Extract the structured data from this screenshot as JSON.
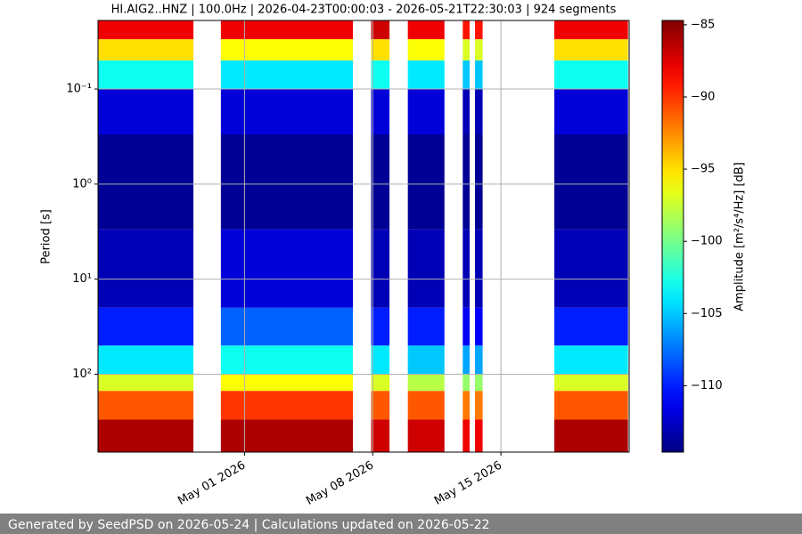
{
  "chart_data": {
    "type": "spectrogram",
    "title": "HI.AIG2..HNZ | 100.0Hz | 2026-04-23T00:00:03 - 2026-05-21T22:30:03 | 924 segments",
    "ylabel": "Period [s]",
    "colorbar_label": "Amplitude [m²/s⁴/Hz] [dB]",
    "xlim": [
      "2026-04-23T00:00:03",
      "2026-05-22T00:00:00"
    ],
    "xticks": [
      {
        "value": "2026-05-01",
        "label": "May 01 2026"
      },
      {
        "value": "2026-05-08",
        "label": "May 08 2026"
      },
      {
        "value": "2026-05-15",
        "label": "May 15 2026"
      }
    ],
    "ylim": [
      660,
      0.019
    ],
    "y_log": true,
    "yticks": [
      {
        "value": 0.1,
        "label": "10⁻¹"
      },
      {
        "value": 1,
        "label": "10⁰"
      },
      {
        "value": 10,
        "label": "10¹"
      },
      {
        "value": 100,
        "label": "10²"
      }
    ],
    "clim": [
      -114.6,
      -84.7
    ],
    "colormap": "jet",
    "cticks": [
      {
        "value": -85,
        "label": "−85"
      },
      {
        "value": -90,
        "label": "−90"
      },
      {
        "value": -95,
        "label": "−95"
      },
      {
        "value": -100,
        "label": "−100"
      },
      {
        "value": -105,
        "label": "−105"
      },
      {
        "value": -110,
        "label": "−110"
      }
    ],
    "grid": true,
    "periods": [
      0.019,
      0.03,
      0.05,
      0.1,
      0.3,
      3,
      20,
      50,
      100,
      150,
      300,
      660
    ],
    "segments": [
      [
        "2026-04-23T00:00:03",
        "2026-04-28T05:00:00"
      ],
      [
        "2026-04-29T17:00:00",
        "2026-05-06T22:00:00"
      ],
      [
        "2026-05-07T22:00:00",
        "2026-05-08T22:00:00"
      ],
      [
        "2026-05-09T22:00:00",
        "2026-05-11T22:00:00"
      ],
      [
        "2026-05-12T22:00:00",
        "2026-05-13T07:00:00"
      ],
      [
        "2026-05-13T14:00:00",
        "2026-05-14T00:00:00"
      ],
      [
        "2026-05-17T22:00:00",
        "2026-05-21T22:30:03"
      ]
    ],
    "values": [
      [
        -88,
        -95,
        -103,
        -112,
        -114,
        -113,
        -110,
        -104,
        -97,
        -91,
        -86
      ],
      [
        -88,
        -96,
        -104,
        -112,
        -114,
        -112,
        -108,
        -103,
        -96,
        -90,
        -86
      ],
      [
        -87,
        -95,
        -103,
        -112,
        -114,
        -113,
        -110,
        -104,
        -97,
        -91,
        -87
      ],
      [
        -88,
        -96,
        -104,
        -112,
        -114,
        -113,
        -110,
        -105,
        -98,
        -91,
        -87
      ],
      [
        -89,
        -97,
        -105,
        -113,
        -114,
        -113,
        -111,
        -106,
        -99,
        -92,
        -88
      ],
      [
        -89,
        -97,
        -105,
        -113,
        -114,
        -113,
        -111,
        -106,
        -99,
        -92,
        -88
      ],
      [
        -88,
        -95,
        -103,
        -112,
        -114,
        -113,
        -110,
        -104,
        -97,
        -91,
        -86
      ]
    ]
  },
  "footer": "Generated by SeedPSD on 2026-05-24 | Calculations updated on 2026-05-22"
}
